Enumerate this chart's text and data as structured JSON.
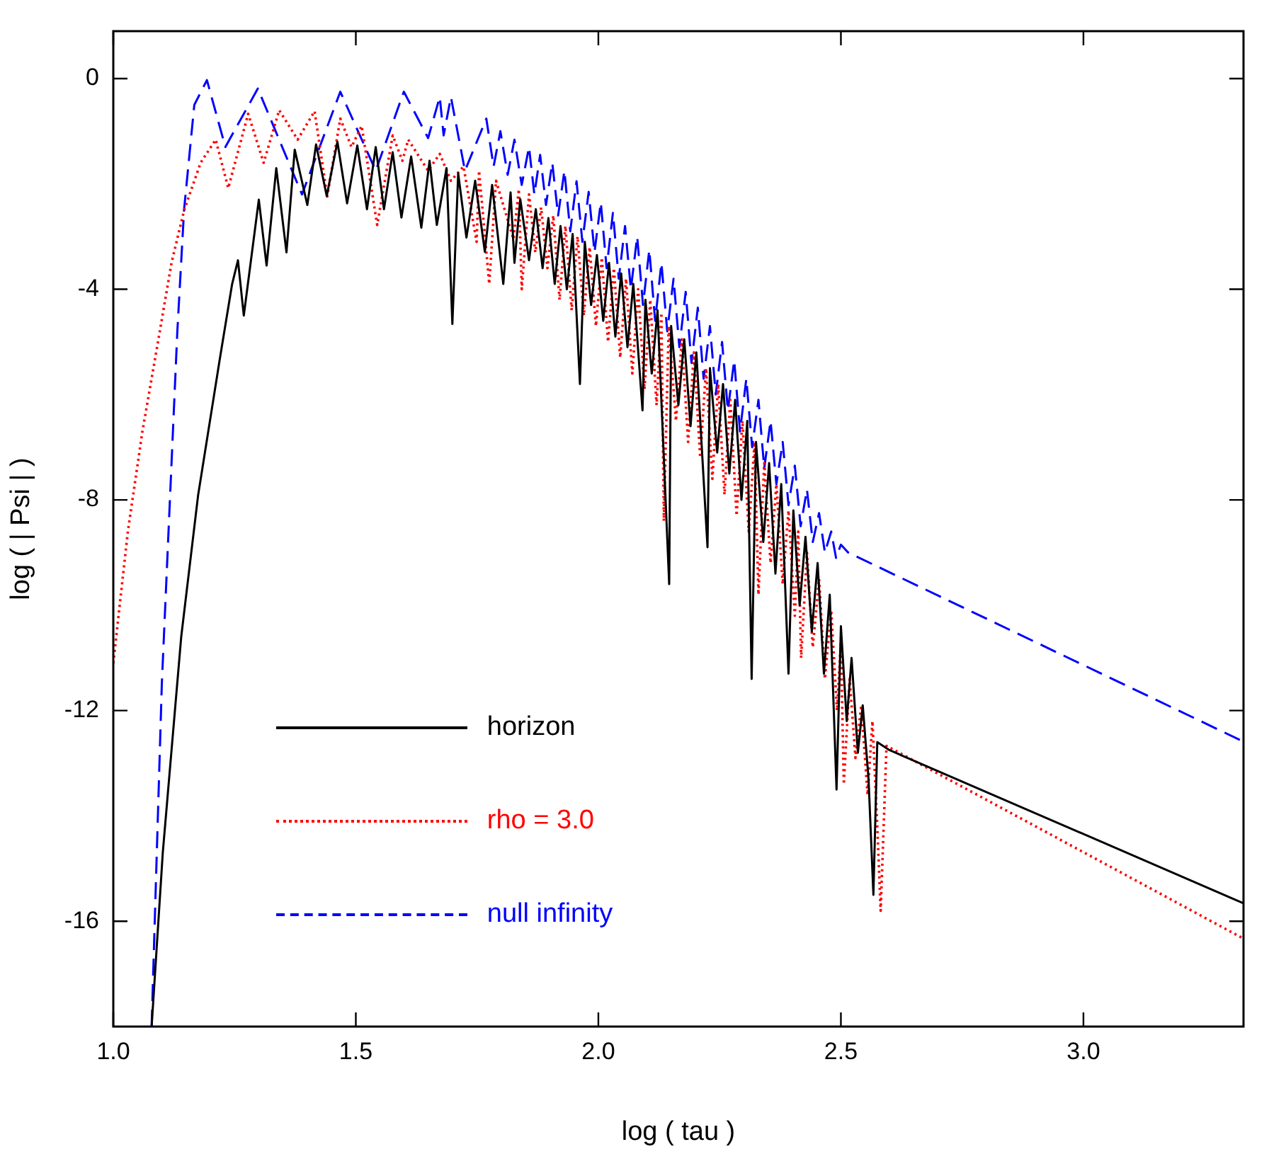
{
  "chart_data": {
    "type": "line",
    "xlabel": "log ( tau )",
    "ylabel": "log ( | Psi | )",
    "xlim": [
      1.0,
      3.33
    ],
    "xticks": [
      {
        "value": 1,
        "label": "1.0"
      },
      {
        "value": 1.5,
        "label": "1.5"
      },
      {
        "value": 2,
        "label": "2.0"
      },
      {
        "value": 2.5,
        "label": "2.5"
      },
      {
        "value": 3,
        "label": "3.0"
      }
    ],
    "ylim": [
      -18,
      0.9
    ],
    "yticks": [
      -16,
      -12,
      -8,
      -4,
      0
    ],
    "grid": false,
    "legend": "bottom left",
    "marker": "none",
    "series": [
      {
        "name": "horizon",
        "color": "#000000",
        "line_style": "solid",
        "x": [
          1.079,
          1.102,
          1.14,
          1.175,
          1.22,
          1.245,
          1.257,
          1.269,
          1.3,
          1.316,
          1.336,
          1.357,
          1.374,
          1.4,
          1.418,
          1.44,
          1.462,
          1.482,
          1.503,
          1.523,
          1.541,
          1.558,
          1.576,
          1.594,
          1.614,
          1.635,
          1.652,
          1.667,
          1.687,
          1.699,
          1.711,
          1.728,
          1.746,
          1.766,
          1.781,
          1.804,
          1.819,
          1.827,
          1.839,
          1.857,
          1.871,
          1.885,
          1.897,
          1.91,
          1.922,
          1.935,
          1.947,
          1.962,
          1.972,
          1.985,
          1.997,
          2.01,
          2.022,
          2.035,
          2.047,
          2.06,
          2.072,
          2.091,
          2.097,
          2.11,
          2.122,
          2.146,
          2.15,
          2.165,
          2.177,
          2.19,
          2.202,
          2.225,
          2.23,
          2.245,
          2.257,
          2.27,
          2.282,
          2.295,
          2.307,
          2.316,
          2.325,
          2.34,
          2.352,
          2.365,
          2.377,
          2.392,
          2.402,
          2.415,
          2.427,
          2.44,
          2.452,
          2.465,
          2.477,
          2.491,
          2.5,
          2.512,
          2.522,
          2.535,
          2.545,
          2.557,
          2.567,
          2.575,
          2.6,
          3.33
        ],
        "values": [
          -18,
          -14.7,
          -10.6,
          -7.9,
          -5.3,
          -3.9,
          -3.45,
          -4.5,
          -2.3,
          -3.55,
          -1.7,
          -3.3,
          -1.35,
          -2.4,
          -1.25,
          -2.23,
          -1.2,
          -2.37,
          -1.27,
          -2.48,
          -1.3,
          -2.48,
          -1.4,
          -2.64,
          -1.48,
          -2.83,
          -1.56,
          -2.78,
          -1.7,
          -4.66,
          -1.8,
          -3.02,
          -1.94,
          -3.29,
          -2.02,
          -3.9,
          -2.16,
          -3.5,
          -2.29,
          -3.45,
          -2.48,
          -3.6,
          -2.65,
          -3.9,
          -2.8,
          -4.0,
          -2.95,
          -5.8,
          -3.1,
          -4.3,
          -3.35,
          -4.6,
          -3.5,
          -4.9,
          -3.7,
          -5.1,
          -3.9,
          -6.3,
          -4.2,
          -5.6,
          -4.4,
          -9.6,
          -4.7,
          -6.2,
          -4.95,
          -6.6,
          -5.2,
          -8.9,
          -5.5,
          -7.1,
          -5.8,
          -7.5,
          -6.1,
          -8.0,
          -6.5,
          -11.4,
          -6.9,
          -8.8,
          -7.3,
          -9.4,
          -7.7,
          -11.3,
          -8.2,
          -10.0,
          -8.7,
          -10.5,
          -9.2,
          -11.3,
          -9.8,
          -13.5,
          -10.4,
          -12.2,
          -11.0,
          -12.8,
          -11.9,
          -13.3,
          -15.5,
          -12.6,
          -12.75,
          -15.66
        ]
      },
      {
        "name": "rho = 3.0",
        "color": "#ff0000",
        "line_style": "dotted",
        "x": [
          1.0,
          1.03,
          1.06,
          1.094,
          1.12,
          1.146,
          1.18,
          1.211,
          1.237,
          1.278,
          1.31,
          1.342,
          1.38,
          1.415,
          1.441,
          1.468,
          1.491,
          1.512,
          1.544,
          1.576,
          1.596,
          1.608,
          1.649,
          1.673,
          1.696,
          1.722,
          1.749,
          1.754,
          1.775,
          1.789,
          1.825,
          1.836,
          1.842,
          1.857,
          1.87,
          1.882,
          1.895,
          1.907,
          1.92,
          1.932,
          1.945,
          1.957,
          1.97,
          1.982,
          1.995,
          2.007,
          2.02,
          2.032,
          2.045,
          2.057,
          2.07,
          2.082,
          2.095,
          2.107,
          2.12,
          2.13,
          2.135,
          2.145,
          2.16,
          2.172,
          2.185,
          2.197,
          2.21,
          2.222,
          2.235,
          2.247,
          2.26,
          2.272,
          2.285,
          2.297,
          2.31,
          2.322,
          2.33,
          2.342,
          2.355,
          2.367,
          2.38,
          2.392,
          2.405,
          2.412,
          2.418,
          2.43,
          2.442,
          2.455,
          2.467,
          2.48,
          2.492,
          2.5,
          2.506,
          2.518,
          2.53,
          2.542,
          2.555,
          2.565,
          2.575,
          2.582,
          2.594,
          3.33
        ],
        "values": [
          -11.1,
          -8.6,
          -6.7,
          -4.9,
          -3.5,
          -2.5,
          -1.6,
          -1.16,
          -2.08,
          -0.67,
          -1.6,
          -0.6,
          -1.16,
          -0.62,
          -2.24,
          -0.76,
          -1.3,
          -0.9,
          -2.78,
          -1.08,
          -1.56,
          -1.16,
          -1.75,
          -1.43,
          -1.94,
          -1.67,
          -3.1,
          -1.75,
          -3.9,
          -1.94,
          -3.05,
          -2.1,
          -4.0,
          -2.2,
          -3.3,
          -2.45,
          -3.6,
          -2.6,
          -4.2,
          -2.8,
          -4.4,
          -3.0,
          -4.5,
          -3.2,
          -4.7,
          -3.4,
          -5.0,
          -3.6,
          -5.3,
          -3.8,
          -5.6,
          -4.0,
          -5.9,
          -4.2,
          -6.2,
          -4.45,
          -8.4,
          -4.7,
          -6.5,
          -4.95,
          -6.9,
          -5.2,
          -7.2,
          -5.5,
          -7.6,
          -5.8,
          -7.9,
          -6.1,
          -8.3,
          -6.5,
          -8.6,
          -6.9,
          -9.8,
          -7.3,
          -9.2,
          -7.7,
          -9.6,
          -8.2,
          -10.2,
          -8.6,
          -11.0,
          -9.0,
          -10.8,
          -9.5,
          -11.4,
          -10.1,
          -12.0,
          -10.7,
          -13.4,
          -11.4,
          -12.9,
          -11.9,
          -13.6,
          -12.2,
          -14.2,
          -15.8,
          -12.67,
          -16.33
        ]
      },
      {
        "name": "null infinity",
        "color": "#0000ff",
        "line_style": "dashed",
        "x": [
          1.079,
          1.1,
          1.132,
          1.146,
          1.167,
          1.193,
          1.231,
          1.298,
          1.389,
          1.468,
          1.541,
          1.599,
          1.649,
          1.673,
          1.681,
          1.696,
          1.725,
          1.769,
          1.784,
          1.798,
          1.813,
          1.827,
          1.842,
          1.857,
          1.868,
          1.88,
          1.892,
          1.905,
          1.917,
          1.93,
          1.942,
          1.955,
          1.967,
          1.98,
          1.992,
          2.005,
          2.017,
          2.03,
          2.042,
          2.055,
          2.067,
          2.08,
          2.092,
          2.105,
          2.117,
          2.13,
          2.142,
          2.155,
          2.167,
          2.18,
          2.192,
          2.205,
          2.217,
          2.23,
          2.242,
          2.255,
          2.267,
          2.28,
          2.292,
          2.305,
          2.317,
          2.33,
          2.342,
          2.355,
          2.367,
          2.38,
          2.392,
          2.405,
          2.417,
          2.43,
          2.442,
          2.455,
          2.467,
          2.48,
          2.49,
          2.5,
          2.515,
          3.33
        ],
        "values": [
          -18,
          -11.5,
          -4.8,
          -2.48,
          -0.5,
          -0.03,
          -1.3,
          -0.19,
          -2.2,
          -0.25,
          -1.75,
          -0.25,
          -1.13,
          -0.35,
          -1.08,
          -0.35,
          -1.75,
          -0.76,
          -1.67,
          -1.0,
          -1.83,
          -1.16,
          -2.02,
          -1.3,
          -2.2,
          -1.45,
          -2.4,
          -1.6,
          -2.6,
          -1.75,
          -2.9,
          -1.95,
          -3.1,
          -2.15,
          -3.3,
          -2.35,
          -3.6,
          -2.55,
          -3.8,
          -2.8,
          -4.0,
          -3.0,
          -4.3,
          -3.25,
          -4.6,
          -3.5,
          -4.8,
          -3.8,
          -5.1,
          -4.05,
          -5.4,
          -4.35,
          -5.7,
          -4.7,
          -6.0,
          -5.0,
          -6.3,
          -5.35,
          -6.7,
          -5.7,
          -7.0,
          -6.1,
          -7.4,
          -6.5,
          -7.7,
          -6.9,
          -8.1,
          -7.35,
          -8.5,
          -7.8,
          -8.8,
          -8.25,
          -9.0,
          -8.6,
          -9.1,
          -8.85,
          -9.0,
          -12.59
        ]
      }
    ]
  }
}
